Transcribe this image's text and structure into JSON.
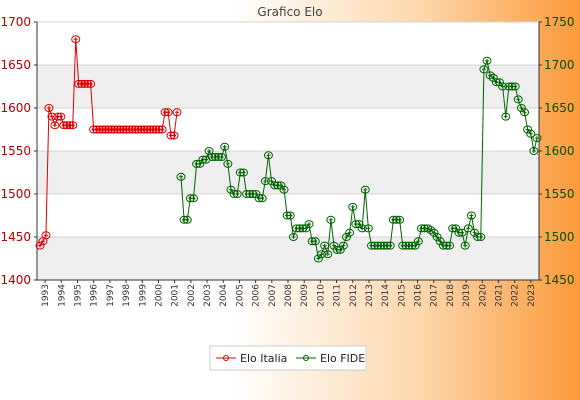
{
  "chart_data": {
    "type": "line",
    "title": "Grafico Elo",
    "x_tick_labels": [
      "1993",
      "1994",
      "1995",
      "1996",
      "1997",
      "1998",
      "1999",
      "2000",
      "2001",
      "2002",
      "2003",
      "2004",
      "2005",
      "2006",
      "2007",
      "2008",
      "2009",
      "2010",
      "2011",
      "2012",
      "2013",
      "2014",
      "2015",
      "2016",
      "2017",
      "2018",
      "2019",
      "2020",
      "2021",
      "2022",
      "2023"
    ],
    "y_left": {
      "ylim": [
        1400,
        1700
      ],
      "ticks": [
        1400,
        1450,
        1500,
        1550,
        1600,
        1650,
        1700
      ]
    },
    "y_right": {
      "ylim": [
        1450,
        1750
      ],
      "ticks": [
        1450,
        1500,
        1550,
        1600,
        1650,
        1700,
        1750
      ]
    },
    "grid": true,
    "legend_position": "bottom",
    "series": [
      {
        "name": "Elo Italia",
        "axis": "left",
        "color": "#e00000",
        "values": [
          1440,
          1445,
          1452,
          1600,
          1590,
          1580,
          1590,
          1590,
          1580,
          1580,
          1580,
          1580,
          1680,
          1628,
          1628,
          1628,
          1628,
          1628,
          1575,
          1575,
          1575,
          1575,
          1575,
          1575,
          1575,
          1575,
          1575,
          1575,
          1575,
          1575,
          1575,
          1575,
          1575,
          1575,
          1575,
          1575,
          1575,
          1575,
          1575,
          1575,
          1575,
          1575,
          1595,
          1595,
          1568,
          1568,
          1595
        ]
      },
      {
        "name": "Elo FIDE",
        "axis": "right",
        "color": "#006400",
        "values": [
          1570,
          1520,
          1520,
          1545,
          1545,
          1585,
          1585,
          1590,
          1590,
          1600,
          1593,
          1593,
          1593,
          1593,
          1605,
          1585,
          1555,
          1550,
          1550,
          1575,
          1575,
          1550,
          1550,
          1550,
          1550,
          1545,
          1545,
          1565,
          1595,
          1565,
          1560,
          1560,
          1560,
          1555,
          1525,
          1525,
          1500,
          1510,
          1510,
          1510,
          1510,
          1515,
          1495,
          1495,
          1475,
          1480,
          1490,
          1480,
          1520,
          1490,
          1485,
          1485,
          1490,
          1500,
          1505,
          1535,
          1515,
          1515,
          1510,
          1555,
          1510,
          1490,
          1490,
          1490,
          1490,
          1490,
          1490,
          1490,
          1520,
          1520,
          1520,
          1490,
          1490,
          1490,
          1490,
          1490,
          1495,
          1510,
          1510,
          1510,
          1508,
          1505,
          1500,
          1495,
          1490,
          1490,
          1490,
          1510,
          1510,
          1505,
          1505,
          1490,
          1510,
          1525,
          1505,
          1500,
          1500,
          1695,
          1705,
          1688,
          1685,
          1680,
          1680,
          1675,
          1640,
          1675,
          1675,
          1675,
          1660,
          1650,
          1645,
          1625,
          1620,
          1600,
          1615
        ]
      }
    ]
  }
}
